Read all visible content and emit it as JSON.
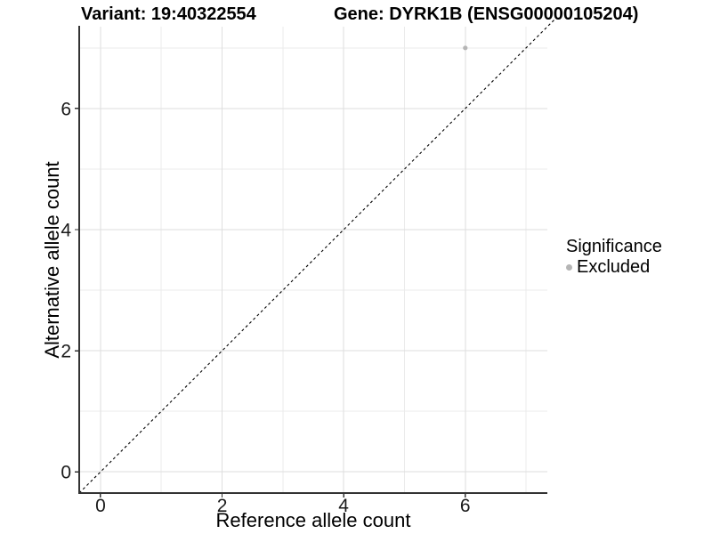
{
  "title": {
    "variant_label": "Variant: 19:40322554",
    "gene_label": "Gene: DYRK1B (ENSG00000105204)"
  },
  "legend": {
    "title": "Significance",
    "items": [
      {
        "label": "Excluded",
        "color": "#b5b5b5"
      }
    ]
  },
  "chart_data": {
    "type": "scatter",
    "title": "Variant: 19:40322554    Gene: DYRK1B (ENSG00000105204)",
    "xlabel": "Reference allele count",
    "ylabel": "Alternative allele count",
    "xlim": [
      -0.35,
      7.35
    ],
    "ylim": [
      -0.35,
      7.35
    ],
    "x_ticks": [
      0,
      2,
      4,
      6
    ],
    "y_ticks": [
      0,
      2,
      4,
      6
    ],
    "x_minor_gridlines": [
      1,
      3,
      5,
      7
    ],
    "y_minor_gridlines": [
      1,
      3,
      5,
      7
    ],
    "grid": true,
    "legend_position": "right",
    "legend_title": "Significance",
    "series": [
      {
        "name": "Excluded",
        "color": "#b5b5b5",
        "points": [
          [
            6,
            7
          ]
        ]
      }
    ],
    "reference_line": {
      "type": "abline",
      "slope": 1,
      "intercept": 0,
      "style": "dashed",
      "color": "#000000"
    }
  },
  "colors": {
    "point": "#b5b5b5",
    "grid_major": "#dedede",
    "grid_minor": "#ebebeb",
    "axis_line": "#333333",
    "tick_mark": "#333333",
    "text": "#000000",
    "background": "#ffffff"
  }
}
